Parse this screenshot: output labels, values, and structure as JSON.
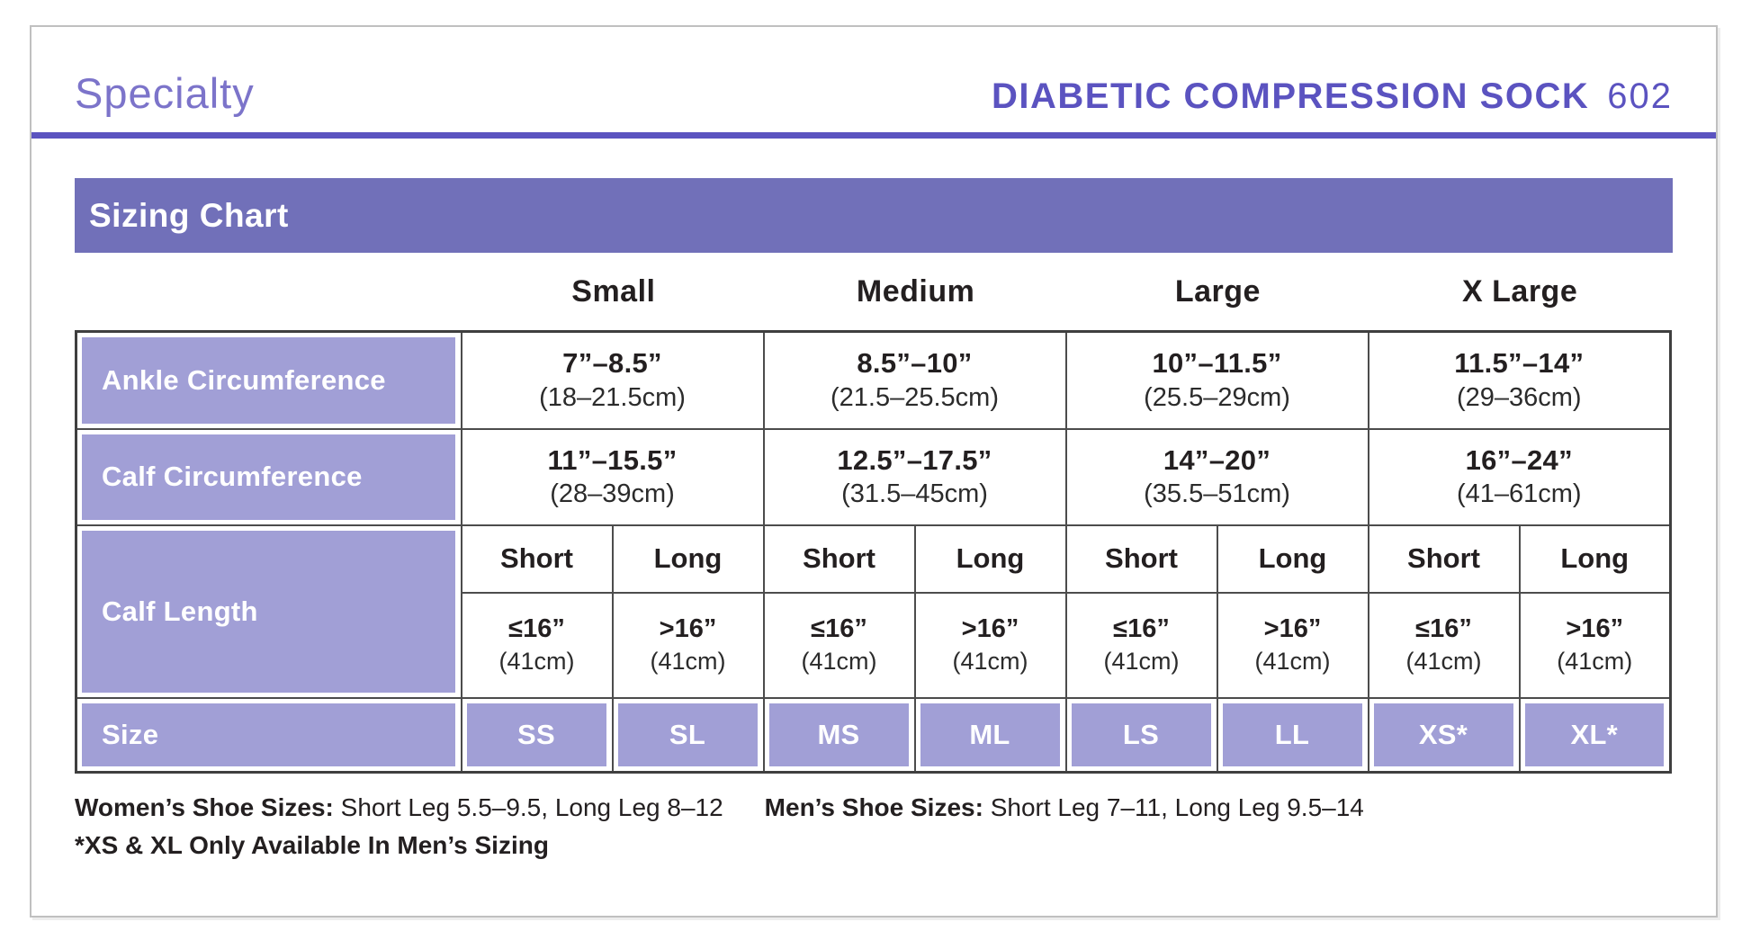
{
  "header": {
    "brand": "Specialty",
    "product": "DIABETIC COMPRESSION SOCK",
    "code": "602"
  },
  "banner_title": "Sizing Chart",
  "columns": [
    "Small",
    "Medium",
    "Large",
    "X Large"
  ],
  "ankle": {
    "label": "Ankle Circumference",
    "inches": [
      "7”–8.5”",
      "8.5”–10”",
      "10”–11.5”",
      "11.5”–14”"
    ],
    "cm": [
      "(18–21.5cm)",
      "(21.5–25.5cm)",
      "(25.5–29cm)",
      "(29–36cm)"
    ]
  },
  "calf": {
    "label": "Calf Circumference",
    "inches": [
      "11”–15.5”",
      "12.5”–17.5”",
      "14”–20”",
      "16”–24”"
    ],
    "cm": [
      "(28–39cm)",
      "(31.5–45cm)",
      "(35.5–51cm)",
      "(41–61cm)"
    ]
  },
  "calf_length": {
    "label": "Calf Length",
    "leg_types": [
      "Short",
      "Long",
      "Short",
      "Long",
      "Short",
      "Long",
      "Short",
      "Long"
    ],
    "inches": [
      "≤16”",
      ">16”",
      "≤16”",
      ">16”",
      "≤16”",
      ">16”",
      "≤16”",
      ">16”"
    ],
    "cm": [
      "(41cm)",
      "(41cm)",
      "(41cm)",
      "(41cm)",
      "(41cm)",
      "(41cm)",
      "(41cm)",
      "(41cm)"
    ]
  },
  "size": {
    "label": "Size",
    "values": [
      "SS",
      "SL",
      "MS",
      "ML",
      "LS",
      "LL",
      "XS*",
      "XL*"
    ]
  },
  "footnotes": {
    "womens_label": "Women’s Shoe Sizes:",
    "womens_text": " Short Leg 5.5–9.5, Long Leg 8–12",
    "mens_label": "Men’s Shoe Sizes:",
    "mens_text": " Short Leg 7–11, Long Leg 9.5–14",
    "disclaimer": "*XS & XL Only Available In Men’s Sizing"
  },
  "colors": {
    "accent": "#5b53c0",
    "brand_text": "#7c74ca",
    "banner": "#7170b9",
    "cell": "#a19fd6",
    "text": "#231f20"
  }
}
